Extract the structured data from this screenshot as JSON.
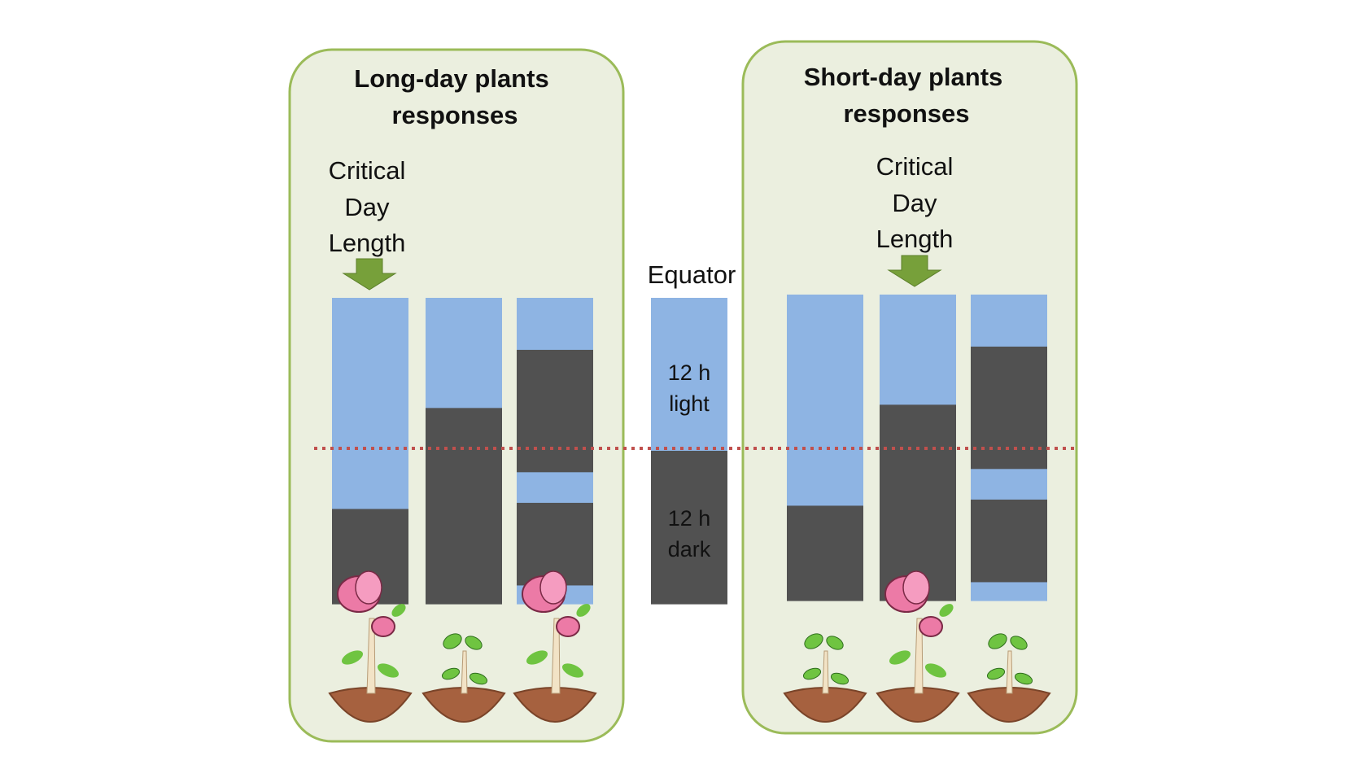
{
  "diagram": {
    "colors": {
      "panel_fill": "#ebefdf",
      "panel_stroke": "#9bbb59",
      "light": "#8eb4e3",
      "dark": "#515151",
      "reference_line": "#c0504d",
      "arrow": "#77a03a",
      "petal": "#ec7aa6",
      "leaf": "#6fc441",
      "soil": "#a6613f",
      "stem": "#f2e3c6"
    },
    "long_day": {
      "title_line1": "Long-day plants",
      "title_line2": "responses",
      "critical_line1": "Critical",
      "critical_line2": "Day",
      "critical_line3": "Length",
      "bars": [
        {
          "segments": [
            {
              "state": "light",
              "fraction": 0.69
            },
            {
              "state": "dark",
              "fraction": 0.31
            }
          ],
          "plant": "flowering"
        },
        {
          "segments": [
            {
              "state": "light",
              "fraction": 0.36
            },
            {
              "state": "dark",
              "fraction": 0.64
            }
          ],
          "plant": "vegetative"
        },
        {
          "segments": [
            {
              "state": "light",
              "fraction": 0.17
            },
            {
              "state": "dark",
              "fraction": 0.4
            },
            {
              "state": "light",
              "fraction": 0.1
            },
            {
              "state": "dark",
              "fraction": 0.27
            },
            {
              "state": "light",
              "fraction": 0.06
            }
          ],
          "plant": "flowering"
        }
      ]
    },
    "equator": {
      "label": "Equator",
      "light_line1": "12 h",
      "light_line2": "light",
      "dark_line1": "12 h",
      "dark_line2": "dark",
      "segments": [
        {
          "state": "light",
          "fraction": 0.5
        },
        {
          "state": "dark",
          "fraction": 0.5
        }
      ]
    },
    "short_day": {
      "title_line1": "Short-day plants",
      "title_line2": "responses",
      "critical_line1": "Critical",
      "critical_line2": "Day",
      "critical_line3": "Length",
      "bars": [
        {
          "segments": [
            {
              "state": "light",
              "fraction": 0.69
            },
            {
              "state": "dark",
              "fraction": 0.31
            }
          ],
          "plant": "vegetative"
        },
        {
          "segments": [
            {
              "state": "light",
              "fraction": 0.36
            },
            {
              "state": "dark",
              "fraction": 0.64
            }
          ],
          "plant": "flowering"
        },
        {
          "segments": [
            {
              "state": "light",
              "fraction": 0.17
            },
            {
              "state": "dark",
              "fraction": 0.4
            },
            {
              "state": "light",
              "fraction": 0.1
            },
            {
              "state": "dark",
              "fraction": 0.27
            },
            {
              "state": "light",
              "fraction": 0.06
            }
          ],
          "plant": "vegetative"
        }
      ]
    }
  }
}
